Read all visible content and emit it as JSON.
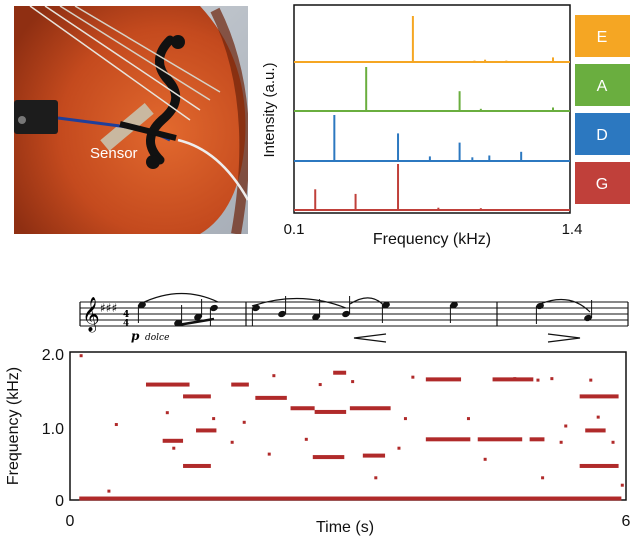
{
  "photo": {
    "label": "Sensor"
  },
  "spectra": {
    "type": "line",
    "xlabel": "Frequency (kHz)",
    "ylabel": "Intensity (a.u.)",
    "xlim": [
      0.1,
      1.4
    ],
    "x_ticks": [
      "0.1",
      "1.4"
    ],
    "strings": [
      {
        "name": "E",
        "color": "#f5a623",
        "peaks": [
          [
            0.66,
            1.0
          ],
          [
            0.95,
            0.03
          ],
          [
            1.0,
            0.05
          ],
          [
            1.1,
            0.03
          ],
          [
            1.32,
            0.1
          ]
        ]
      },
      {
        "name": "A",
        "color": "#6aae3f",
        "peaks": [
          [
            0.44,
            1.0
          ],
          [
            0.88,
            0.45
          ],
          [
            0.98,
            0.05
          ],
          [
            1.32,
            0.08
          ]
        ]
      },
      {
        "name": "D",
        "color": "#2c78c0",
        "peaks": [
          [
            0.29,
            1.0
          ],
          [
            0.59,
            0.6
          ],
          [
            0.74,
            0.1
          ],
          [
            0.88,
            0.4
          ],
          [
            0.94,
            0.08
          ],
          [
            1.02,
            0.12
          ],
          [
            1.17,
            0.2
          ]
        ]
      },
      {
        "name": "G",
        "color": "#c0403a",
        "peaks": [
          [
            0.2,
            0.45
          ],
          [
            0.39,
            0.35
          ],
          [
            0.59,
            1.0
          ],
          [
            0.78,
            0.05
          ],
          [
            0.98,
            0.04
          ]
        ]
      }
    ]
  },
  "score": {
    "dynamic": "p",
    "expression": "dolce"
  },
  "spectrogram": {
    "type": "scatter",
    "xlabel": "Time (s)",
    "ylabel": "Frequency (kHz)",
    "xlim": [
      0,
      6
    ],
    "ylim": [
      0,
      2.0
    ],
    "x_ticks": [
      "0",
      "6"
    ],
    "y_ticks": [
      "0",
      "1.0",
      "2.0"
    ],
    "color": "#b02a2a",
    "segments": [
      {
        "t": [
          0.82,
          1.29
        ],
        "f": 1.56
      },
      {
        "t": [
          1.22,
          1.52
        ],
        "f": 1.4
      },
      {
        "t": [
          1.0,
          1.22
        ],
        "f": 0.8
      },
      {
        "t": [
          1.36,
          1.58
        ],
        "f": 0.94
      },
      {
        "t": [
          1.22,
          1.52
        ],
        "f": 0.46
      },
      {
        "t": [
          1.74,
          1.93
        ],
        "f": 1.56
      },
      {
        "t": [
          2.0,
          2.34
        ],
        "f": 1.38
      },
      {
        "t": [
          2.38,
          2.64
        ],
        "f": 1.24
      },
      {
        "t": [
          2.64,
          2.98
        ],
        "f": 1.19
      },
      {
        "t": [
          3.02,
          3.46
        ],
        "f": 1.24
      },
      {
        "t": [
          2.62,
          2.96
        ],
        "f": 0.58
      },
      {
        "t": [
          3.16,
          3.4
        ],
        "f": 0.6
      },
      {
        "t": [
          2.84,
          2.98
        ],
        "f": 1.72
      },
      {
        "t": [
          3.84,
          4.22
        ],
        "f": 1.63
      },
      {
        "t": [
          4.56,
          5.0
        ],
        "f": 1.63
      },
      {
        "t": [
          3.84,
          4.32
        ],
        "f": 0.82
      },
      {
        "t": [
          4.4,
          4.88
        ],
        "f": 0.82
      },
      {
        "t": [
          4.96,
          5.12
        ],
        "f": 0.82
      },
      {
        "t": [
          5.5,
          5.92
        ],
        "f": 1.4
      },
      {
        "t": [
          5.56,
          5.78
        ],
        "f": 0.94
      },
      {
        "t": [
          5.5,
          5.92
        ],
        "f": 0.46
      },
      {
        "t": [
          0.1,
          5.95
        ],
        "f": 0.02
      }
    ],
    "specks": [
      [
        0.42,
        0.12
      ],
      [
        0.55,
        0.02
      ],
      [
        0.5,
        1.02
      ],
      [
        0.12,
        1.95
      ],
      [
        1.05,
        1.18
      ],
      [
        1.12,
        0.7
      ],
      [
        1.55,
        1.1
      ],
      [
        1.75,
        0.78
      ],
      [
        1.88,
        1.05
      ],
      [
        2.2,
        1.68
      ],
      [
        2.15,
        0.62
      ],
      [
        2.55,
        0.82
      ],
      [
        2.7,
        1.56
      ],
      [
        3.05,
        1.6
      ],
      [
        3.3,
        0.3
      ],
      [
        3.55,
        0.7
      ],
      [
        3.62,
        1.1
      ],
      [
        3.7,
        1.66
      ],
      [
        4.3,
        1.1
      ],
      [
        4.48,
        0.55
      ],
      [
        4.8,
        1.64
      ],
      [
        5.05,
        1.62
      ],
      [
        5.2,
        1.64
      ],
      [
        5.1,
        0.3
      ],
      [
        5.3,
        0.78
      ],
      [
        5.35,
        1.0
      ],
      [
        5.62,
        1.62
      ],
      [
        5.86,
        0.78
      ],
      [
        5.7,
        1.12
      ],
      [
        5.96,
        0.2
      ]
    ]
  }
}
